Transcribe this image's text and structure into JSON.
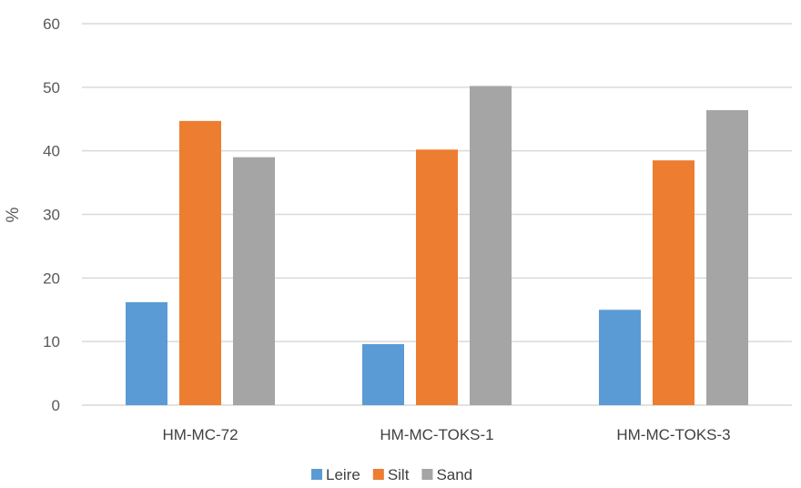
{
  "chart_data": {
    "type": "bar",
    "categories": [
      "HM-MC-72",
      "HM-MC-TOKS-1",
      "HM-MC-TOKS-3"
    ],
    "series": [
      {
        "name": "Leire",
        "color": "#5b9bd5",
        "values": [
          16.2,
          9.6,
          15.0
        ]
      },
      {
        "name": "Silt",
        "color": "#ed7d31",
        "values": [
          44.7,
          40.2,
          38.5
        ]
      },
      {
        "name": "Sand",
        "color": "#a5a5a5",
        "values": [
          39.0,
          50.2,
          46.4
        ]
      }
    ],
    "ylabel": "%",
    "ylim": [
      0,
      60
    ],
    "yticks": [
      0,
      10,
      20,
      30,
      40,
      50,
      60
    ],
    "grid": true,
    "legend": "bottom-center"
  }
}
